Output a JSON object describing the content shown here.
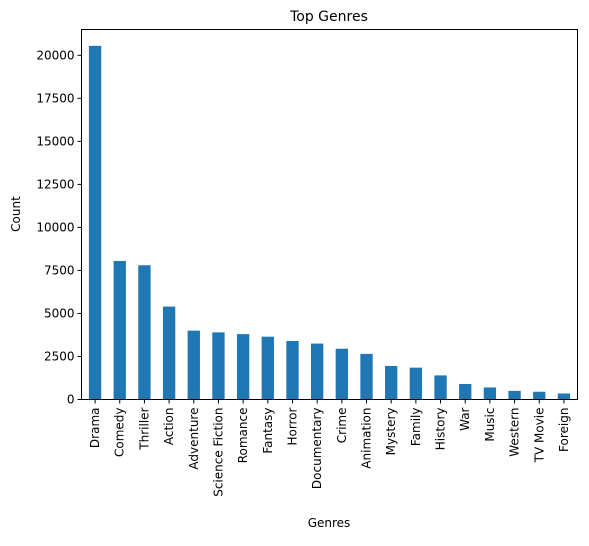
{
  "chart_data": {
    "type": "bar",
    "title": "Top Genres",
    "xlabel": "Genres",
    "ylabel": "Count",
    "ylim": [
      0,
      21500
    ],
    "yticks": [
      0,
      2500,
      5000,
      7500,
      10000,
      12500,
      15000,
      17500,
      20000
    ],
    "grid": false,
    "legend": "none",
    "bar_color": "#1f77b4",
    "categories": [
      "Drama",
      "Comedy",
      "Thriller",
      "Action",
      "Adventure",
      "Science Fiction",
      "Romance",
      "Fantasy",
      "Horror",
      "Documentary",
      "Crime",
      "Animation",
      "Mystery",
      "Family",
      "History",
      "War",
      "Music",
      "Western",
      "TV Movie",
      "Foreign"
    ],
    "values": [
      20550,
      8050,
      7800,
      5400,
      4000,
      3900,
      3800,
      3650,
      3400,
      3250,
      2950,
      2650,
      1950,
      1850,
      1400,
      900,
      700,
      500,
      450,
      350
    ]
  }
}
